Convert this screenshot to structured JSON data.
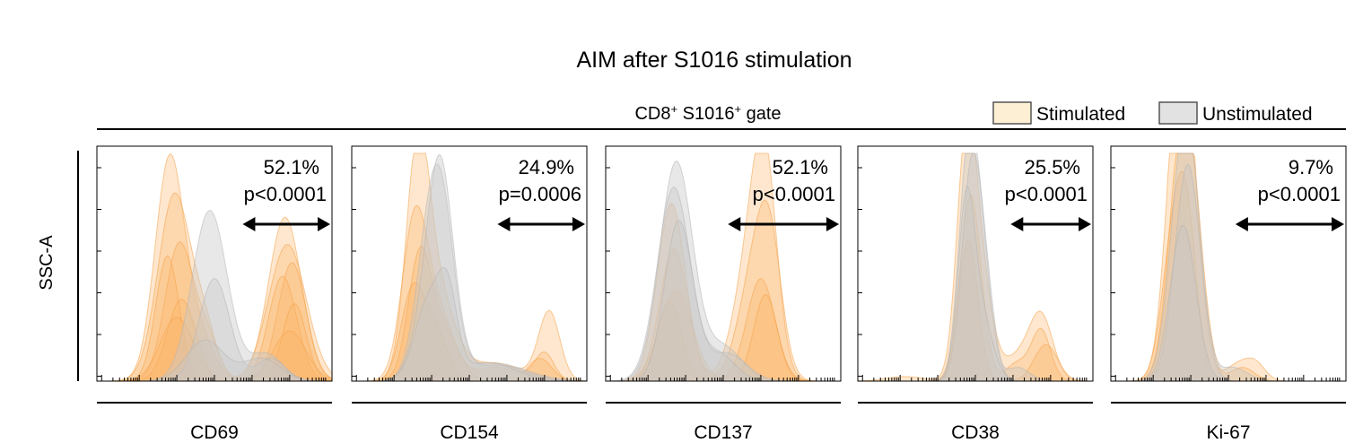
{
  "chart_data": {
    "type": "histogram",
    "title": "AIM after S1016 stimulation",
    "gate_label": {
      "base1": "CD8",
      "sup1": "+",
      "base2": " S1016",
      "sup2": "+",
      "suffix": " gate"
    },
    "ylabel": "SSC-A",
    "legend": [
      {
        "name": "Stimulated",
        "color": "#FDEFD3"
      },
      {
        "name": "Unstimulated",
        "color": "#E2E2E2"
      }
    ],
    "colors": {
      "stimulated_fill": "#FBB466",
      "stimulated_stroke": "#F4A24A",
      "unstimulated_fill": "#C8C8C8",
      "unstimulated_stroke": "#B4B4B4",
      "legend_border": "#555555"
    },
    "x_domain": [
      0,
      1
    ],
    "y_domain": [
      0,
      1
    ],
    "panels": [
      {
        "marker": "CD69",
        "percent": "52.1%",
        "pvalue": "p<0.0001",
        "gate_range": [
          0.62,
          1.0
        ],
        "series": [
          {
            "group": "Stimulated",
            "peaks": [
              [
                0.31,
                0.062,
                0.98
              ],
              [
                0.8,
                0.07,
                0.72
              ],
              [
                0.44,
                0.06,
                0.18
              ]
            ]
          },
          {
            "group": "Stimulated",
            "peaks": [
              [
                0.33,
                0.07,
                0.82
              ],
              [
                0.81,
                0.08,
                0.6
              ],
              [
                0.46,
                0.05,
                0.2
              ]
            ]
          },
          {
            "group": "Stimulated",
            "peaks": [
              [
                0.35,
                0.06,
                0.6
              ],
              [
                0.83,
                0.06,
                0.52
              ],
              [
                0.47,
                0.05,
                0.18
              ]
            ]
          },
          {
            "group": "Stimulated",
            "peaks": [
              [
                0.3,
                0.05,
                0.55
              ],
              [
                0.79,
                0.06,
                0.46
              ]
            ]
          },
          {
            "group": "Stimulated",
            "peaks": [
              [
                0.36,
                0.06,
                0.36
              ],
              [
                0.84,
                0.05,
                0.34
              ]
            ]
          },
          {
            "group": "Stimulated",
            "peaks": [
              [
                0.34,
                0.07,
                0.28
              ],
              [
                0.82,
                0.07,
                0.22
              ]
            ]
          },
          {
            "group": "Unstimulated",
            "peaks": [
              [
                0.48,
                0.075,
                0.75
              ],
              [
                0.72,
                0.07,
                0.12
              ]
            ]
          },
          {
            "group": "Unstimulated",
            "peaks": [
              [
                0.5,
                0.065,
                0.45
              ],
              [
                0.74,
                0.06,
                0.1
              ]
            ]
          },
          {
            "group": "Unstimulated",
            "peaks": [
              [
                0.46,
                0.08,
                0.18
              ],
              [
                0.7,
                0.08,
                0.1
              ]
            ]
          }
        ]
      },
      {
        "marker": "CD154",
        "percent": "24.9%",
        "pvalue": "p=0.0006",
        "gate_range": [
          0.62,
          1.0
        ],
        "series": [
          {
            "group": "Stimulated",
            "peaks": [
              [
                0.28,
                0.05,
                0.96
              ],
              [
                0.37,
                0.07,
                0.35
              ],
              [
                0.84,
                0.045,
                0.3
              ],
              [
                0.6,
                0.12,
                0.08
              ]
            ]
          },
          {
            "group": "Stimulated",
            "peaks": [
              [
                0.27,
                0.055,
                0.72
              ],
              [
                0.38,
                0.06,
                0.25
              ],
              [
                0.82,
                0.04,
                0.12
              ],
              [
                0.62,
                0.1,
                0.06
              ]
            ]
          },
          {
            "group": "Stimulated",
            "peaks": [
              [
                0.29,
                0.05,
                0.55
              ],
              [
                0.4,
                0.06,
                0.2
              ],
              [
                0.8,
                0.05,
                0.1
              ]
            ]
          },
          {
            "group": "Stimulated",
            "peaks": [
              [
                0.26,
                0.05,
                0.4
              ],
              [
                0.36,
                0.05,
                0.2
              ]
            ]
          },
          {
            "group": "Unstimulated",
            "peaks": [
              [
                0.34,
                0.06,
                0.72
              ],
              [
                0.4,
                0.05,
                0.35
              ],
              [
                0.6,
                0.14,
                0.08
              ]
            ]
          },
          {
            "group": "Unstimulated",
            "peaks": [
              [
                0.36,
                0.07,
                0.55
              ],
              [
                0.38,
                0.05,
                0.45
              ],
              [
                0.62,
                0.12,
                0.07
              ]
            ]
          },
          {
            "group": "Unstimulated",
            "peaks": [
              [
                0.33,
                0.06,
                0.35
              ],
              [
                0.41,
                0.04,
                0.3
              ],
              [
                0.58,
                0.12,
                0.08
              ]
            ]
          }
        ]
      },
      {
        "marker": "CD137",
        "percent": "52.1%",
        "pvalue": "p<0.0001",
        "gate_range": [
          0.52,
          1.0
        ],
        "series": [
          {
            "group": "Stimulated",
            "peaks": [
              [
                0.28,
                0.06,
                0.78
              ],
              [
                0.62,
                0.07,
                0.55
              ],
              [
                0.68,
                0.05,
                0.7
              ]
            ]
          },
          {
            "group": "Stimulated",
            "peaks": [
              [
                0.29,
                0.06,
                0.58
              ],
              [
                0.64,
                0.07,
                0.5
              ],
              [
                0.7,
                0.05,
                0.4
              ]
            ]
          },
          {
            "group": "Stimulated",
            "peaks": [
              [
                0.3,
                0.07,
                0.4
              ],
              [
                0.66,
                0.06,
                0.45
              ]
            ]
          },
          {
            "group": "Stimulated",
            "peaks": [
              [
                0.27,
                0.05,
                0.35
              ],
              [
                0.68,
                0.05,
                0.38
              ]
            ]
          },
          {
            "group": "Unstimulated",
            "peaks": [
              [
                0.3,
                0.07,
                0.96
              ],
              [
                0.5,
                0.08,
                0.15
              ]
            ]
          },
          {
            "group": "Unstimulated",
            "peaks": [
              [
                0.29,
                0.07,
                0.85
              ],
              [
                0.52,
                0.08,
                0.12
              ]
            ]
          },
          {
            "group": "Unstimulated",
            "peaks": [
              [
                0.31,
                0.06,
                0.7
              ],
              [
                0.48,
                0.07,
                0.12
              ]
            ]
          }
        ]
      },
      {
        "marker": "CD38",
        "percent": "25.5%",
        "pvalue": "p<0.0001",
        "gate_range": [
          0.65,
          1.0
        ],
        "series": [
          {
            "group": "Stimulated",
            "peaks": [
              [
                0.46,
                0.04,
                0.95
              ],
              [
                0.52,
                0.05,
                0.45
              ],
              [
                0.78,
                0.05,
                0.28
              ],
              [
                0.68,
                0.06,
                0.1
              ],
              [
                0.2,
                0.08,
                0.02
              ]
            ]
          },
          {
            "group": "Stimulated",
            "peaks": [
              [
                0.48,
                0.045,
                0.82
              ],
              [
                0.78,
                0.04,
                0.22
              ],
              [
                0.68,
                0.05,
                0.08
              ]
            ]
          },
          {
            "group": "Stimulated",
            "peaks": [
              [
                0.47,
                0.04,
                0.62
              ],
              [
                0.8,
                0.05,
                0.16
              ]
            ]
          },
          {
            "group": "Unstimulated",
            "peaks": [
              [
                0.47,
                0.04,
                0.98
              ],
              [
                0.53,
                0.04,
                0.45
              ],
              [
                0.68,
                0.05,
                0.06
              ]
            ]
          },
          {
            "group": "Unstimulated",
            "peaks": [
              [
                0.48,
                0.04,
                0.85
              ],
              [
                0.54,
                0.04,
                0.4
              ]
            ]
          },
          {
            "group": "Unstimulated",
            "peaks": [
              [
                0.46,
                0.035,
                0.7
              ],
              [
                0.52,
                0.05,
                0.3
              ]
            ]
          }
        ]
      },
      {
        "marker": "Ki-67",
        "percent": "9.7%",
        "pvalue": "p<0.0001",
        "gate_range": [
          0.53,
          1.0
        ],
        "series": [
          {
            "group": "Stimulated",
            "peaks": [
              [
                0.28,
                0.05,
                0.96
              ],
              [
                0.33,
                0.05,
                0.8
              ],
              [
                0.55,
                0.06,
                0.08
              ],
              [
                0.62,
                0.04,
                0.05
              ]
            ]
          },
          {
            "group": "Stimulated",
            "peaks": [
              [
                0.29,
                0.05,
                0.82
              ],
              [
                0.35,
                0.05,
                0.62
              ],
              [
                0.56,
                0.05,
                0.06
              ]
            ]
          },
          {
            "group": "Stimulated",
            "peaks": [
              [
                0.27,
                0.05,
                0.65
              ],
              [
                0.33,
                0.04,
                0.5
              ]
            ]
          },
          {
            "group": "Unstimulated",
            "peaks": [
              [
                0.3,
                0.055,
                0.72
              ],
              [
                0.34,
                0.05,
                0.55
              ],
              [
                0.52,
                0.06,
                0.06
              ]
            ]
          },
          {
            "group": "Unstimulated",
            "peaks": [
              [
                0.31,
                0.05,
                0.58
              ],
              [
                0.35,
                0.05,
                0.45
              ]
            ]
          },
          {
            "group": "Unstimulated",
            "peaks": [
              [
                0.29,
                0.05,
                0.42
              ],
              [
                0.33,
                0.05,
                0.32
              ]
            ]
          }
        ]
      }
    ]
  }
}
